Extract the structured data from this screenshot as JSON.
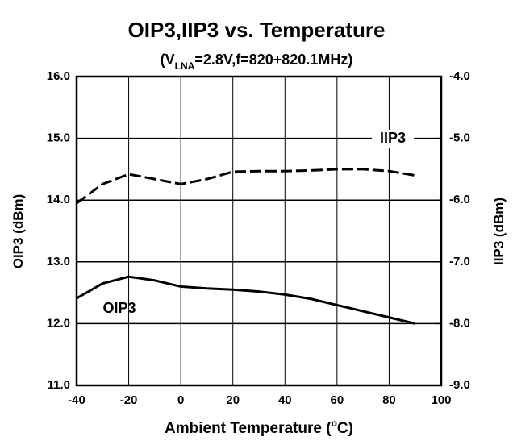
{
  "chart_data": {
    "type": "line",
    "title": "OIP3,IIP3 vs. Temperature",
    "subtitle": [
      "(V",
      "LNA",
      "=2.8V,f=820+820.1MHz)"
    ],
    "x_label": [
      "Ambient Temperature (",
      "o",
      "C)"
    ],
    "y_label": "OIP3 (dBm)",
    "y2_label": "IIP3 (dBm)",
    "x": [
      -40,
      -30,
      -20,
      -10,
      0,
      10,
      20,
      30,
      40,
      50,
      60,
      70,
      80,
      90
    ],
    "series": [
      {
        "name": "OIP3",
        "color": "#000000",
        "values": [
          12.41,
          12.65,
          12.76,
          12.7,
          12.6,
          12.57,
          12.55,
          12.52,
          12.47,
          12.4,
          12.3,
          12.2,
          12.1,
          12.0
        ]
      },
      {
        "name": "IIP3",
        "color": "#000000",
        "axis": "y2",
        "dashed": true,
        "values": [
          -6.05,
          -5.74,
          -5.58,
          -5.66,
          -5.74,
          -5.66,
          -5.54,
          -5.53,
          -5.53,
          -5.52,
          -5.5,
          -5.5,
          -5.53,
          -5.6
        ]
      }
    ],
    "xlim": [
      -40,
      100
    ],
    "xticks": [
      -40,
      -20,
      0,
      20,
      40,
      60,
      80,
      100
    ],
    "ylim": [
      11,
      16
    ],
    "yticks": [
      {
        "value": 11,
        "label": "11.0"
      },
      {
        "value": 12,
        "label": "12.0"
      },
      {
        "value": 13,
        "label": "13.0"
      },
      {
        "value": 14,
        "label": "14.0"
      },
      {
        "value": 15,
        "label": "15.0"
      },
      {
        "value": 16,
        "label": "16.0"
      }
    ],
    "y2lim": [
      -9,
      -4
    ],
    "y2ticks": [
      {
        "value": -9,
        "label": "-9.0"
      },
      {
        "value": -8,
        "label": "-8.0"
      },
      {
        "value": -7,
        "label": "-7.0"
      },
      {
        "value": -6,
        "label": "-6.0"
      },
      {
        "value": -5,
        "label": "-5.0"
      },
      {
        "value": -4,
        "label": "-4.0"
      }
    ],
    "grid": true
  }
}
